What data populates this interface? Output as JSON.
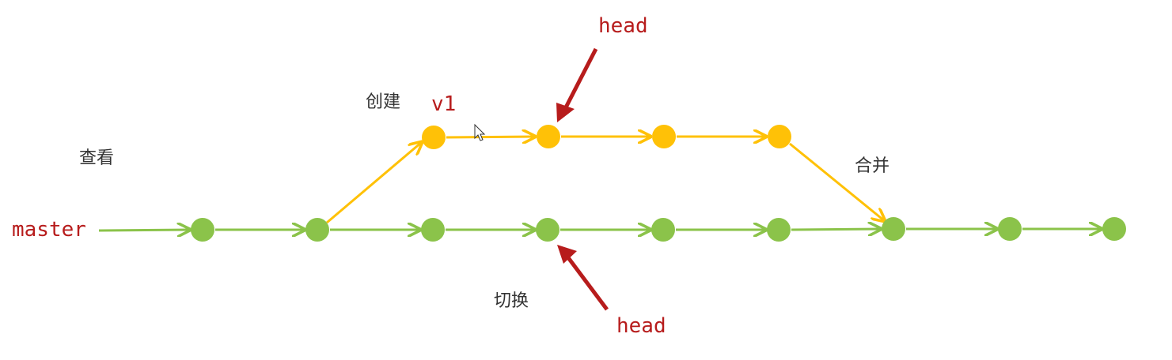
{
  "labels": {
    "master": "master",
    "view": "查看",
    "create": "创建",
    "v1": "v1",
    "merge": "合并",
    "switch": "切换",
    "head_top": "head",
    "head_bottom": "head"
  },
  "colors": {
    "master_branch": "#8bc34a",
    "v1_branch": "#ffc107",
    "pointer_arrow": "#b71c1c",
    "code_text": "#b71c1c",
    "annotation_text": "#333333"
  }
}
